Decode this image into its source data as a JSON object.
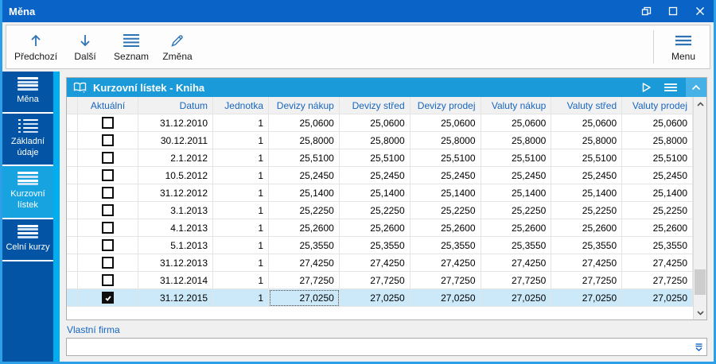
{
  "window": {
    "title": "Měna",
    "controls": [
      {
        "icon": "restore",
        "name": "restore-button"
      },
      {
        "icon": "maximize",
        "name": "maximize-button"
      },
      {
        "icon": "close",
        "name": "close-button"
      }
    ]
  },
  "toolbar": {
    "buttons": [
      {
        "icon": "arrow-up",
        "label": "Předchozí"
      },
      {
        "icon": "arrow-down",
        "label": "Další"
      },
      {
        "icon": "list",
        "label": "Seznam"
      },
      {
        "icon": "pencil",
        "label": "Změna"
      }
    ],
    "menu_button": {
      "icon": "menu",
      "label": "Menu"
    }
  },
  "sidebar": {
    "items": [
      {
        "label": "Měna",
        "icon": "menu-lines",
        "active": false
      },
      {
        "label": "Základní údaje",
        "icon": "dotted-list",
        "active": false
      },
      {
        "label": "Kurzovní lístek",
        "icon": "menu-lines",
        "active": true
      },
      {
        "label": "Celní kurzy",
        "icon": "menu-lines",
        "active": false
      }
    ]
  },
  "panel": {
    "title": "Kurzovní lístek - Kniha",
    "accent_color": "#1a9ad8"
  },
  "table": {
    "columns": [
      {
        "key": "indicator",
        "label": "",
        "align": "center"
      },
      {
        "key": "aktualni",
        "label": "Aktuální",
        "align": "center"
      },
      {
        "key": "datum",
        "label": "Datum",
        "align": "right"
      },
      {
        "key": "jednotka",
        "label": "Jednotka",
        "align": "right"
      },
      {
        "key": "devizy_nakup",
        "label": "Devizy nákup",
        "align": "right"
      },
      {
        "key": "devizy_stred",
        "label": "Devizy střed",
        "align": "right"
      },
      {
        "key": "devizy_prodej",
        "label": "Devizy prodej",
        "align": "right"
      },
      {
        "key": "valuty_nakup",
        "label": "Valuty nákup",
        "align": "right"
      },
      {
        "key": "valuty_stred",
        "label": "Valuty střed",
        "align": "right"
      },
      {
        "key": "valuty_prodej",
        "label": "Valuty prodej",
        "align": "right"
      }
    ],
    "rows": [
      {
        "aktualni": false,
        "datum": "31.12.2010",
        "jednotka": "1",
        "devizy_nakup": "25,0600",
        "devizy_stred": "25,0600",
        "devizy_prodej": "25,0600",
        "valuty_nakup": "25,0600",
        "valuty_stred": "25,0600",
        "valuty_prodej": "25,0600"
      },
      {
        "aktualni": false,
        "datum": "30.12.2011",
        "jednotka": "1",
        "devizy_nakup": "25,8000",
        "devizy_stred": "25,8000",
        "devizy_prodej": "25,8000",
        "valuty_nakup": "25,8000",
        "valuty_stred": "25,8000",
        "valuty_prodej": "25,8000"
      },
      {
        "aktualni": false,
        "datum": "2.1.2012",
        "jednotka": "1",
        "devizy_nakup": "25,5100",
        "devizy_stred": "25,5100",
        "devizy_prodej": "25,5100",
        "valuty_nakup": "25,5100",
        "valuty_stred": "25,5100",
        "valuty_prodej": "25,5100"
      },
      {
        "aktualni": false,
        "datum": "10.5.2012",
        "jednotka": "1",
        "devizy_nakup": "25,2450",
        "devizy_stred": "25,2450",
        "devizy_prodej": "25,2450",
        "valuty_nakup": "25,2450",
        "valuty_stred": "25,2450",
        "valuty_prodej": "25,2450"
      },
      {
        "aktualni": false,
        "datum": "31.12.2012",
        "jednotka": "1",
        "devizy_nakup": "25,1400",
        "devizy_stred": "25,1400",
        "devizy_prodej": "25,1400",
        "valuty_nakup": "25,1400",
        "valuty_stred": "25,1400",
        "valuty_prodej": "25,1400"
      },
      {
        "aktualni": false,
        "datum": "3.1.2013",
        "jednotka": "1",
        "devizy_nakup": "25,2250",
        "devizy_stred": "25,2250",
        "devizy_prodej": "25,2250",
        "valuty_nakup": "25,2250",
        "valuty_stred": "25,2250",
        "valuty_prodej": "25,2250"
      },
      {
        "aktualni": false,
        "datum": "4.1.2013",
        "jednotka": "1",
        "devizy_nakup": "25,2600",
        "devizy_stred": "25,2600",
        "devizy_prodej": "25,2600",
        "valuty_nakup": "25,2600",
        "valuty_stred": "25,2600",
        "valuty_prodej": "25,2600"
      },
      {
        "aktualni": false,
        "datum": "5.1.2013",
        "jednotka": "1",
        "devizy_nakup": "25,3550",
        "devizy_stred": "25,3550",
        "devizy_prodej": "25,3550",
        "valuty_nakup": "25,3550",
        "valuty_stred": "25,3550",
        "valuty_prodej": "25,3550"
      },
      {
        "aktualni": false,
        "datum": "31.12.2013",
        "jednotka": "1",
        "devizy_nakup": "27,4250",
        "devizy_stred": "27,4250",
        "devizy_prodej": "27,4250",
        "valuty_nakup": "27,4250",
        "valuty_stred": "27,4250",
        "valuty_prodej": "27,4250"
      },
      {
        "aktualni": false,
        "datum": "31.12.2014",
        "jednotka": "1",
        "devizy_nakup": "27,7250",
        "devizy_stred": "27,7250",
        "devizy_prodej": "27,7250",
        "valuty_nakup": "27,7250",
        "valuty_stred": "27,7250",
        "valuty_prodej": "27,7250"
      },
      {
        "aktualni": true,
        "datum": "31.12.2015",
        "jednotka": "1",
        "devizy_nakup": "27,0250",
        "devizy_stred": "27,0250",
        "devizy_prodej": "27,0250",
        "valuty_nakup": "27,0250",
        "valuty_stred": "27,0250",
        "valuty_prodej": "27,0250"
      }
    ],
    "selected_row_index": 10,
    "focused_cell": {
      "row": 10,
      "column": "devizy_nakup"
    },
    "selected_row_color": "#cbe9f9"
  },
  "footer": {
    "label": "Vlastní firma",
    "value": ""
  }
}
